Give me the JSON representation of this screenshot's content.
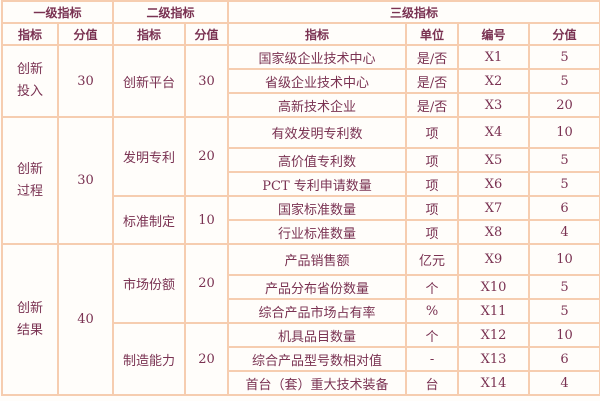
{
  "header": {
    "level1": "一级指标",
    "level2": "二级指标",
    "level3": "三级指标",
    "sub": {
      "l1_indicator": "指标",
      "l1_score": "分值",
      "l2_indicator": "指标",
      "l2_score": "分值",
      "l3_indicator": "指标",
      "l3_unit": "单位",
      "l3_code": "编号",
      "l3_score": "分值"
    }
  },
  "groups": [
    {
      "name_line1": "创新",
      "name_line2": "投入",
      "score": "30",
      "sub": [
        {
          "name": "创新平台",
          "score": "30",
          "items": [
            {
              "name": "国家级企业技术中心",
              "unit": "是/否",
              "code": "X1",
              "score": "5"
            },
            {
              "name": "省级企业技术中心",
              "unit": "是/否",
              "code": "X2",
              "score": "5"
            },
            {
              "name": "高新技术企业",
              "unit": "是/否",
              "code": "X3",
              "score": "20"
            }
          ]
        }
      ]
    },
    {
      "name_line1": "创新",
      "name_line2": "过程",
      "score": "30",
      "sub": [
        {
          "name": "发明专利",
          "score": "20",
          "items": [
            {
              "name": "有效发明专利数",
              "unit": "项",
              "code": "X4",
              "score": "10"
            },
            {
              "name": "高价值专利数",
              "unit": "项",
              "code": "X5",
              "score": "5"
            },
            {
              "name": "PCT 专利申请数量",
              "unit": "项",
              "code": "X6",
              "score": "5"
            }
          ]
        },
        {
          "name": "标准制定",
          "score": "10",
          "items": [
            {
              "name": "国家标准数量",
              "unit": "项",
              "code": "X7",
              "score": "6"
            },
            {
              "name": "行业标准数量",
              "unit": "项",
              "code": "X8",
              "score": "4"
            }
          ]
        }
      ]
    },
    {
      "name_line1": "创新",
      "name_line2": "结果",
      "score": "40",
      "sub": [
        {
          "name": "市场份额",
          "score": "20",
          "items": [
            {
              "name": "产品销售额",
              "unit": "亿元",
              "code": "X9",
              "score": "10"
            },
            {
              "name": "产品分布省份数量",
              "unit": "个",
              "code": "X10",
              "score": "5"
            },
            {
              "name": "综合产品市场占有率",
              "unit": "%",
              "code": "X11",
              "score": "5"
            }
          ]
        },
        {
          "name": "制造能力",
          "score": "20",
          "items": [
            {
              "name": "机具品目数量",
              "unit": "个",
              "code": "X12",
              "score": "10"
            },
            {
              "name": "综合产品型号数相对值",
              "unit": "-",
              "code": "X13",
              "score": "6"
            },
            {
              "name": "首台（套）重大技术装备",
              "unit": "台",
              "code": "X14",
              "score": "4"
            }
          ]
        }
      ]
    }
  ],
  "colors": {
    "text": "#7a3252",
    "border": "#f6cdb0",
    "background": "#fffdfa"
  }
}
